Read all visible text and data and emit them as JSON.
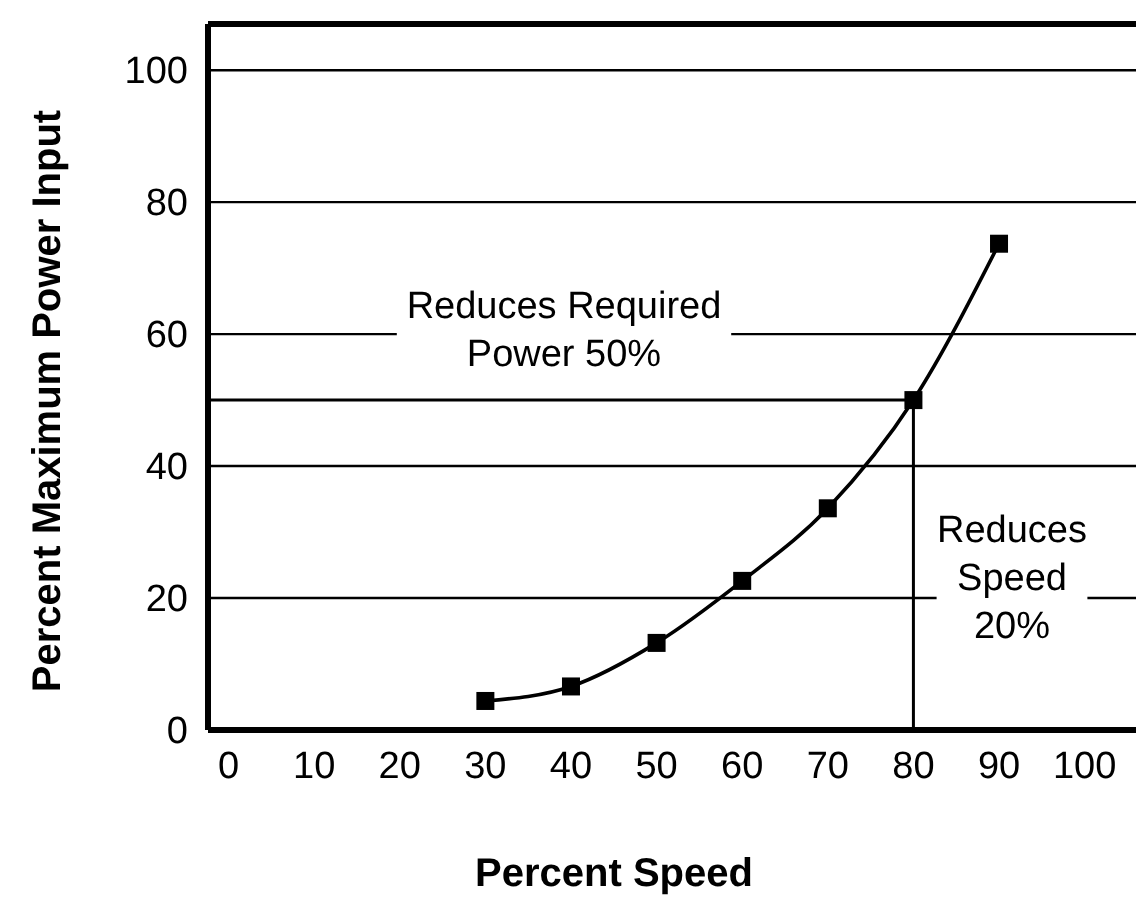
{
  "chart_data": {
    "type": "line",
    "xlabel": "Percent Speed",
    "ylabel": "Percent Maximum Power Input",
    "x": [
      30,
      40,
      50,
      60,
      70,
      80,
      90
    ],
    "series": [
      {
        "color": "#000000",
        "values": [
          4.4,
          6.6,
          13.2,
          22.6,
          33.6,
          50,
          73.7
        ]
      }
    ],
    "xlim": [
      -2.4,
      106
    ],
    "xticks": [
      0,
      10,
      20,
      30,
      40,
      50,
      60,
      70,
      80,
      90,
      100
    ],
    "ylim": [
      0,
      107
    ],
    "yticks": [
      0,
      20,
      40,
      60,
      80,
      100
    ],
    "grid": "y",
    "marker": "square",
    "line_style": "solid",
    "ref_lines": [
      {
        "axis": "y",
        "value": 50
      },
      {
        "axis": "x",
        "value": 80
      }
    ],
    "annotations": [
      "Reduces Required\nPower 50%",
      "Reduces\nSpeed\n20%"
    ]
  }
}
